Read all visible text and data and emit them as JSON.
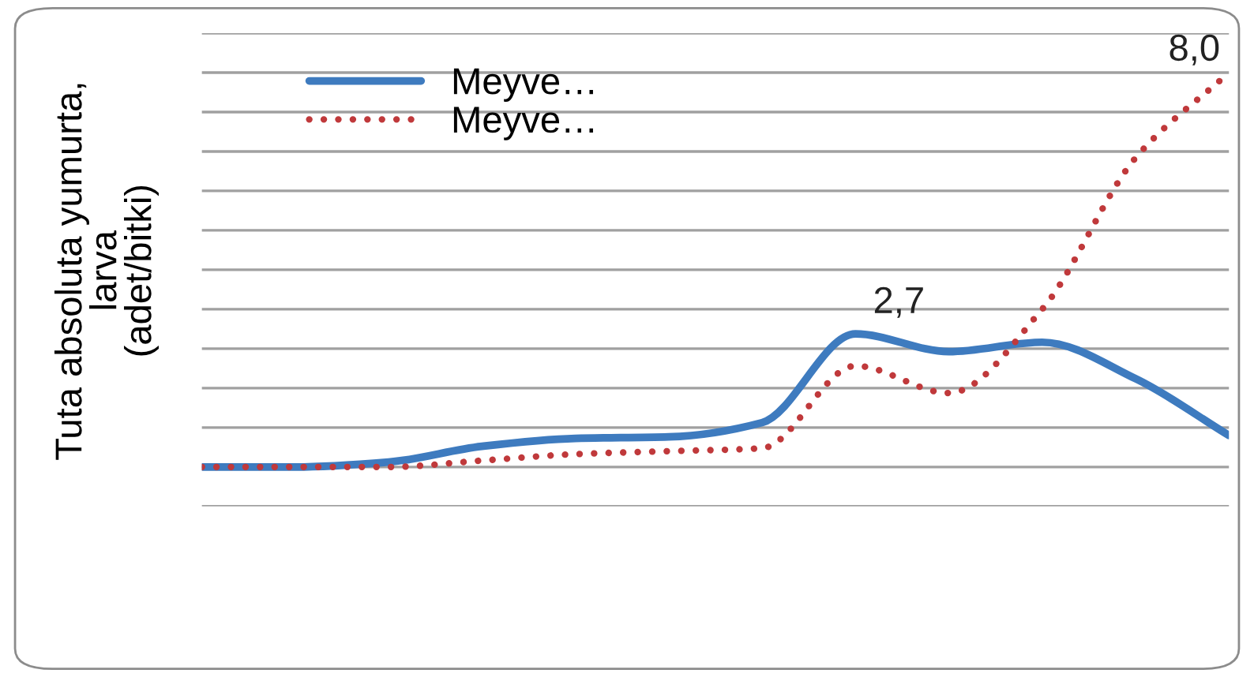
{
  "chart_data": {
    "type": "line",
    "ylabel": "Tuta absoluta yumurta,\nlarva\n(adet/bitki)",
    "categories": [
      null,
      null,
      null,
      null,
      null,
      null,
      null,
      null,
      null,
      null,
      null,
      null
    ],
    "ylim": [
      -0.8,
      8.8
    ],
    "yticks": [
      {
        "value": -0.8,
        "label": null
      },
      {
        "value": 0,
        "label": null
      },
      {
        "value": 0.8,
        "label": null
      },
      {
        "value": 1.6,
        "label": null
      },
      {
        "value": 2.4,
        "label": null
      },
      {
        "value": 3.2,
        "label": null
      },
      {
        "value": 4.0,
        "label": null
      },
      {
        "value": 4.8,
        "label": null
      },
      {
        "value": 5.6,
        "label": null
      },
      {
        "value": 6.4,
        "label": null
      },
      {
        "value": 7.2,
        "label": null
      },
      {
        "value": 8.0,
        "label": null
      },
      {
        "value": 8.8,
        "label": null
      }
    ],
    "series": [
      {
        "name": "Meyve…",
        "color": "#3e7bbf",
        "line_style": "solid",
        "values": [
          0,
          0,
          0.1,
          0.42,
          0.58,
          0.61,
          0.9,
          2.7,
          2.34,
          2.53,
          1.79,
          0.64
        ],
        "value_labels": [
          null,
          null,
          null,
          null,
          null,
          null,
          null,
          "2,7",
          null,
          null,
          null,
          null
        ]
      },
      {
        "name": "Meyve…",
        "color": "#c0393b",
        "line_style": "dotted",
        "values": [
          0,
          0,
          0,
          0.13,
          0.26,
          0.32,
          0.38,
          2.05,
          1.5,
          3.2,
          6.27,
          8.0
        ],
        "value_labels": [
          null,
          null,
          null,
          null,
          null,
          null,
          null,
          null,
          null,
          null,
          null,
          "8,0"
        ]
      }
    ],
    "grid": "y",
    "legend": "top left",
    "marker": "none"
  }
}
